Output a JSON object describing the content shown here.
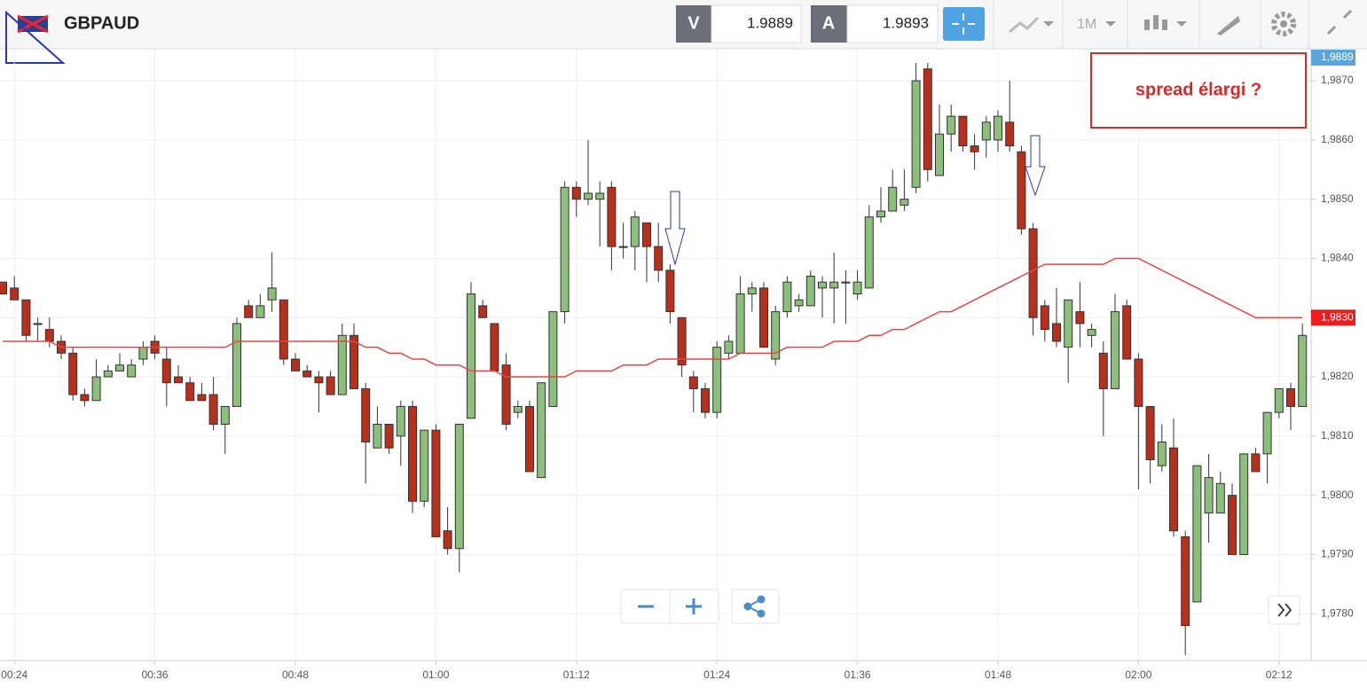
{
  "toolbar": {
    "symbol": "GBPAUD",
    "bid_label": "V",
    "bid": "1.9889",
    "ask_label": "A",
    "ask": "1.9893",
    "timeframe": "1M"
  },
  "chart_data": {
    "type": "candlestick",
    "annotation": "spread élargi ?",
    "categories": [
      null,
      "00:24",
      null,
      null,
      null,
      null,
      null,
      null,
      null,
      null,
      null,
      null,
      null,
      "00:36",
      null,
      null,
      null,
      null,
      null,
      null,
      null,
      null,
      null,
      null,
      null,
      "00:48",
      null,
      null,
      null,
      null,
      null,
      null,
      null,
      null,
      null,
      null,
      null,
      "01:00",
      null,
      null,
      null,
      null,
      null,
      null,
      null,
      null,
      null,
      null,
      null,
      "01:12",
      null,
      null,
      null,
      null,
      null,
      null,
      null,
      null,
      null,
      null,
      null,
      "01:24",
      null,
      null,
      null,
      null,
      null,
      null,
      null,
      null,
      null,
      null,
      null,
      "01:36",
      null,
      null,
      null,
      null,
      null,
      null,
      null,
      null,
      null,
      null,
      null,
      "01:48",
      null,
      null,
      null,
      null,
      null,
      null,
      null,
      null,
      null,
      null,
      null,
      "02:00",
      null,
      null,
      null,
      null,
      null,
      null,
      null,
      null,
      null,
      null,
      null,
      "02:12",
      null,
      null
    ],
    "open": [
      1.9836,
      1.9835,
      1.9833,
      1.9829,
      1.9828,
      1.9826,
      1.9824,
      1.9817,
      1.9816,
      1.982,
      1.9821,
      1.982,
      1.9823,
      1.9826,
      1.9823,
      1.982,
      1.9819,
      1.9817,
      1.9817,
      1.9812,
      1.9815,
      1.9832,
      1.983,
      1.9833,
      1.9833,
      1.9823,
      1.9821,
      1.982,
      1.982,
      1.9817,
      1.9827,
      1.9818,
      1.9808,
      1.9812,
      1.981,
      1.9815,
      1.9799,
      1.9811,
      1.9794,
      1.9791,
      1.9813,
      1.9832,
      1.9829,
      1.9822,
      1.9814,
      1.9815,
      1.9803,
      1.9815,
      1.9831,
      1.9852,
      1.985,
      1.985,
      1.9852,
      1.9842,
      1.9842,
      1.9846,
      1.9842,
      1.9838,
      1.983,
      1.982,
      1.9818,
      1.9814,
      1.9824,
      1.9824,
      1.9834,
      1.9835,
      1.9823,
      1.9831,
      1.9832,
      1.9832,
      1.9835,
      1.9835,
      1.9836,
      1.9834,
      1.9835,
      1.9847,
      1.9848,
      1.9849,
      1.9852,
      1.9872,
      1.9854,
      1.9861,
      1.9864,
      1.9859,
      1.986,
      1.986,
      1.9863,
      1.9858,
      1.9845,
      1.9832,
      1.9829,
      1.9825,
      1.9831,
      1.9827,
      1.9824,
      1.9818,
      1.9832,
      1.9823,
      1.9815,
      1.9805,
      1.9808,
      1.9793,
      1.9782,
      1.9797,
      1.9797,
      1.98,
      1.979,
      1.9807,
      1.9807,
      1.9814,
      1.9818,
      1.9815
    ],
    "high": [
      1.9836,
      1.9837,
      1.9833,
      1.983,
      1.983,
      1.9827,
      1.9825,
      1.9818,
      1.9823,
      1.9822,
      1.9824,
      1.9823,
      1.9826,
      1.9827,
      1.9825,
      1.9822,
      1.982,
      1.9819,
      1.982,
      1.9815,
      1.983,
      1.9833,
      1.9834,
      1.9841,
      1.9833,
      1.9824,
      1.9822,
      1.9821,
      1.9821,
      1.9829,
      1.9829,
      1.9819,
      1.9815,
      1.9812,
      1.9816,
      1.9816,
      1.9811,
      1.9812,
      1.9798,
      1.9812,
      1.9836,
      1.9833,
      1.9829,
      1.9824,
      1.9816,
      1.9816,
      1.9819,
      1.9831,
      1.9853,
      1.9853,
      1.986,
      1.9853,
      1.9853,
      1.9846,
      1.9848,
      1.9846,
      1.9846,
      1.9839,
      1.983,
      1.9821,
      1.9819,
      1.9826,
      1.9827,
      1.9837,
      1.9836,
      1.9836,
      1.9832,
      1.9837,
      1.9834,
      1.9838,
      1.9837,
      1.9841,
      1.9838,
      1.9838,
      1.9849,
      1.9852,
      1.9855,
      1.9855,
      1.9873,
      1.9873,
      1.9866,
      1.9866,
      1.9864,
      1.9861,
      1.9864,
      1.9865,
      1.987,
      1.9859,
      1.9846,
      1.9833,
      1.9835,
      1.9833,
      1.9836,
      1.9829,
      1.9826,
      1.9834,
      1.9833,
      1.9824,
      1.9815,
      1.9812,
      1.9813,
      1.9794,
      1.9805,
      1.9807,
      1.9804,
      1.9802,
      1.9807,
      1.9808,
      1.9814,
      1.9818,
      1.9819,
      1.9829
    ],
    "low": [
      1.9834,
      1.9833,
      1.9826,
      1.9826,
      1.9825,
      1.9823,
      1.9816,
      1.9815,
      1.9816,
      1.982,
      1.9821,
      1.982,
      1.9822,
      1.9823,
      1.9815,
      1.9819,
      1.9816,
      1.9816,
      1.9811,
      1.9807,
      1.9815,
      1.983,
      1.983,
      1.9831,
      1.9822,
      1.9821,
      1.982,
      1.9814,
      1.9817,
      1.9817,
      1.9818,
      1.9802,
      1.9808,
      1.9807,
      1.9805,
      1.9797,
      1.9798,
      1.9793,
      1.979,
      1.9787,
      1.9813,
      1.983,
      1.9821,
      1.9811,
      1.9813,
      1.9804,
      1.9803,
      1.9815,
      1.9829,
      1.9847,
      1.9849,
      1.9842,
      1.9838,
      1.984,
      1.9838,
      1.9836,
      1.9836,
      1.9829,
      1.982,
      1.9814,
      1.9813,
      1.9813,
      1.9823,
      1.9824,
      1.9831,
      1.9825,
      1.9822,
      1.983,
      1.9831,
      1.9832,
      1.983,
      1.9829,
      1.9829,
      1.9833,
      1.9835,
      1.9846,
      1.9848,
      1.9848,
      1.9851,
      1.9853,
      1.9854,
      1.9858,
      1.9858,
      1.9855,
      1.9857,
      1.9858,
      1.9858,
      1.9844,
      1.9827,
      1.9826,
      1.9825,
      1.9819,
      1.9825,
      1.9825,
      1.981,
      1.9818,
      1.9823,
      1.9801,
      1.9802,
      1.9804,
      1.9793,
      1.9773,
      1.9782,
      1.9792,
      1.9797,
      1.979,
      1.979,
      1.9804,
      1.9802,
      1.9813,
      1.9811,
      1.9815
    ],
    "close": [
      1.9834,
      1.9833,
      1.9827,
      1.9829,
      1.9826,
      1.9824,
      1.9817,
      1.9816,
      1.982,
      1.9821,
      1.9822,
      1.9822,
      1.9825,
      1.9824,
      1.9819,
      1.9819,
      1.9816,
      1.9816,
      1.9812,
      1.9815,
      1.9829,
      1.983,
      1.9832,
      1.9835,
      1.9823,
      1.9821,
      1.982,
      1.9819,
      1.9817,
      1.9827,
      1.9818,
      1.9809,
      1.9812,
      1.9808,
      1.9815,
      1.9799,
      1.9811,
      1.9793,
      1.9791,
      1.9812,
      1.9834,
      1.983,
      1.9821,
      1.9812,
      1.9815,
      1.9804,
      1.9819,
      1.9831,
      1.9852,
      1.985,
      1.9851,
      1.9851,
      1.9842,
      1.9842,
      1.9847,
      1.9842,
      1.9838,
      1.9831,
      1.9822,
      1.9818,
      1.9814,
      1.9825,
      1.9826,
      1.9834,
      1.9835,
      1.9825,
      1.9831,
      1.9836,
      1.9833,
      1.9837,
      1.9836,
      1.9836,
      1.9836,
      1.9836,
      1.9847,
      1.9848,
      1.9852,
      1.985,
      1.987,
      1.9855,
      1.9861,
      1.9864,
      1.9859,
      1.9858,
      1.9863,
      1.9864,
      1.9859,
      1.9845,
      1.983,
      1.9828,
      1.9826,
      1.9833,
      1.9829,
      1.9828,
      1.9818,
      1.9831,
      1.9823,
      1.9815,
      1.9806,
      1.9809,
      1.9794,
      1.9778,
      1.9805,
      1.9803,
      1.9802,
      1.979,
      1.9807,
      1.9804,
      1.9814,
      1.9818,
      1.9815,
      1.9827
    ],
    "ma": [
      1.9826,
      1.9826,
      1.9826,
      1.9826,
      1.9826,
      1.9825,
      1.9825,
      1.9825,
      1.9825,
      1.9825,
      1.9825,
      1.9825,
      1.9825,
      1.9825,
      1.9825,
      1.9825,
      1.9825,
      1.9825,
      1.9825,
      1.9825,
      1.9826,
      1.9826,
      1.9826,
      1.9826,
      1.9826,
      1.9826,
      1.9826,
      1.9826,
      1.9826,
      1.9826,
      1.9826,
      1.9825,
      1.9825,
      1.9824,
      1.9824,
      1.9823,
      1.9823,
      1.9822,
      1.9822,
      1.9822,
      1.9821,
      1.9821,
      1.9821,
      1.982,
      1.982,
      1.982,
      1.982,
      1.982,
      1.982,
      1.9821,
      1.9821,
      1.9821,
      1.9821,
      1.9822,
      1.9822,
      1.9822,
      1.9823,
      1.9823,
      1.9823,
      1.9823,
      1.9823,
      1.9823,
      1.9823,
      1.9824,
      1.9824,
      1.9824,
      1.9824,
      1.9825,
      1.9825,
      1.9825,
      1.9825,
      1.9826,
      1.9826,
      1.9826,
      1.9827,
      1.9827,
      1.9828,
      1.9828,
      1.9829,
      1.983,
      1.9831,
      1.9831,
      1.9832,
      1.9833,
      1.9834,
      1.9835,
      1.9836,
      1.9837,
      1.9838,
      1.9839,
      1.9839,
      1.9839,
      1.9839,
      1.9839,
      1.9839,
      1.984,
      1.984,
      1.984,
      1.9839,
      1.9838,
      1.9837,
      1.9836,
      1.9835,
      1.9834,
      1.9833,
      1.9832,
      1.9831,
      1.983,
      1.983,
      1.983,
      1.983,
      1.983
    ],
    "up_color": "#8cbf7b",
    "down_color": "#b8301c",
    "ma_color": "#e84545",
    "ylim": [
      1.97721,
      1.98754
    ],
    "yticks": [
      {
        "value": 1.978,
        "label": "1,9780"
      },
      {
        "value": 1.979,
        "label": "1,9790"
      },
      {
        "value": 1.98,
        "label": "1,9800"
      },
      {
        "value": 1.981,
        "label": "1,9810"
      },
      {
        "value": 1.982,
        "label": "1,9820"
      },
      {
        "value": 1.983,
        "label": "1,9830"
      },
      {
        "value": 1.984,
        "label": "1,9840"
      },
      {
        "value": 1.985,
        "label": "1,9850"
      },
      {
        "value": 1.986,
        "label": "1,9860"
      },
      {
        "value": 1.987,
        "label": "1,9870"
      }
    ],
    "price_tags": [
      {
        "value": 1.9889,
        "label": "1,9889",
        "color": "#5aa6dc"
      },
      {
        "value": 1.983,
        "label": "1,9830",
        "color": "#ee1c1c"
      }
    ],
    "grid": true
  }
}
